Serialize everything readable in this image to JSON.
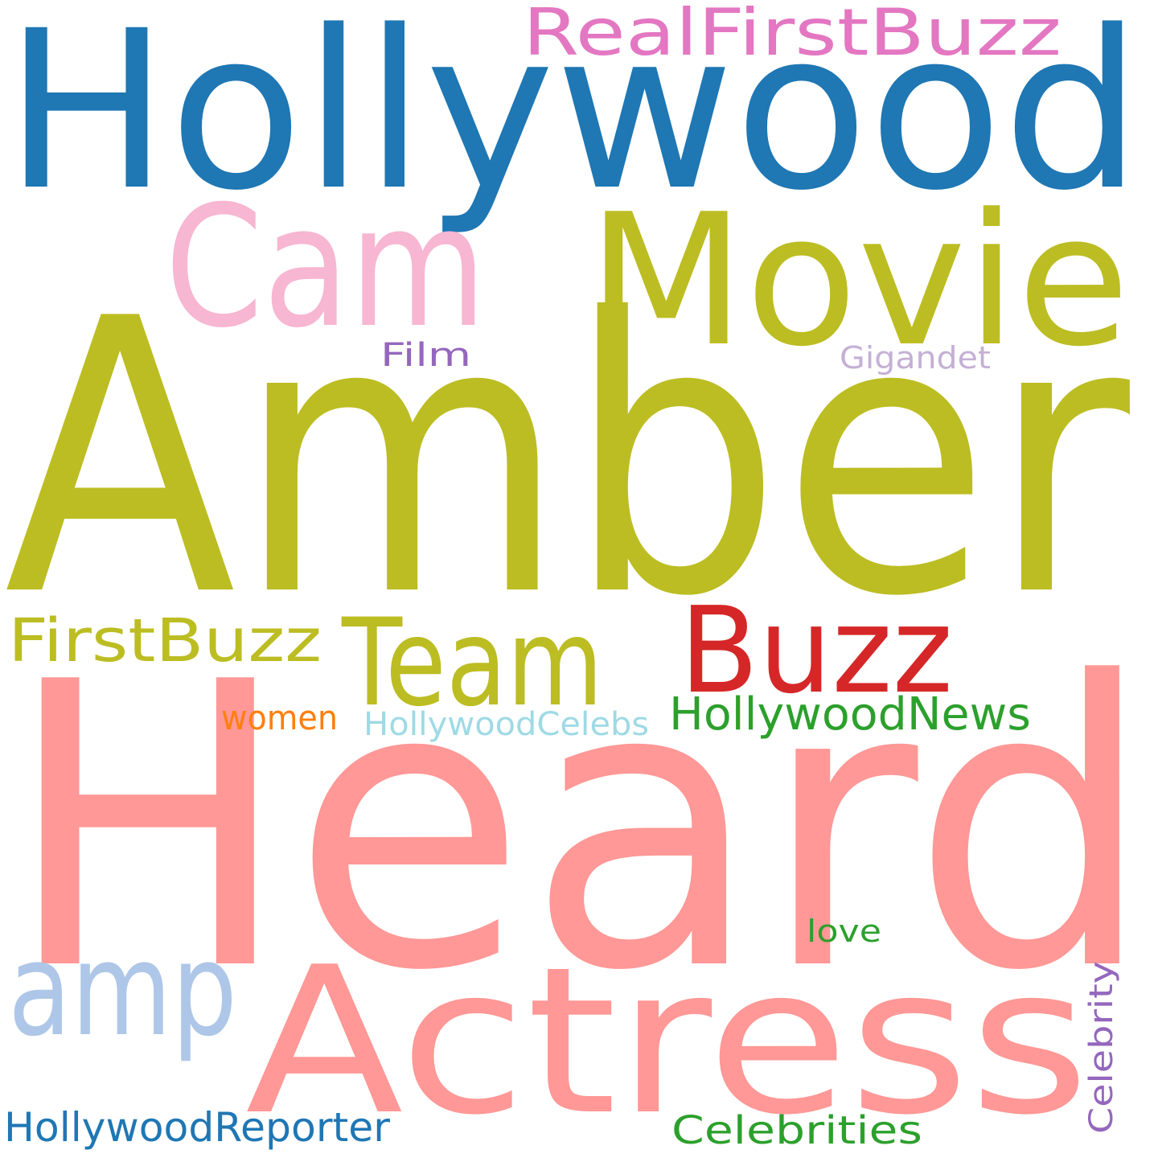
{
  "words": [
    {
      "text": "Heard",
      "color": "#ff9896"
    },
    {
      "text": "Amber",
      "color": "#bcbd22"
    },
    {
      "text": "Hollywood",
      "color": "#1f77b4"
    },
    {
      "text": "Actress",
      "color": "#ff9896"
    },
    {
      "text": "Movie",
      "color": "#bcbd22"
    },
    {
      "text": "Cam",
      "color": "#f7b6d2"
    },
    {
      "text": "Team",
      "color": "#bcbd22"
    },
    {
      "text": "amp",
      "color": "#aec7e8"
    },
    {
      "text": "Buzz",
      "color": "#d62728"
    },
    {
      "text": "RealFirstBuzz",
      "color": "#e377c2"
    },
    {
      "text": "FirstBuzz",
      "color": "#bcbd22"
    },
    {
      "text": "HollywoodNews",
      "color": "#2ca02c"
    },
    {
      "text": "HollywoodReporter",
      "color": "#1f77b4"
    },
    {
      "text": "Celebrities",
      "color": "#2ca02c"
    },
    {
      "text": "HollywoodCelebs",
      "color": "#9edae5"
    },
    {
      "text": "Celebrity",
      "color": "#9467bd"
    },
    {
      "text": "women",
      "color": "#ff7f0e"
    },
    {
      "text": "Film",
      "color": "#9467bd"
    },
    {
      "text": "Gigandet",
      "color": "#c5b0d5"
    },
    {
      "text": "love",
      "color": "#2ca02c"
    }
  ]
}
